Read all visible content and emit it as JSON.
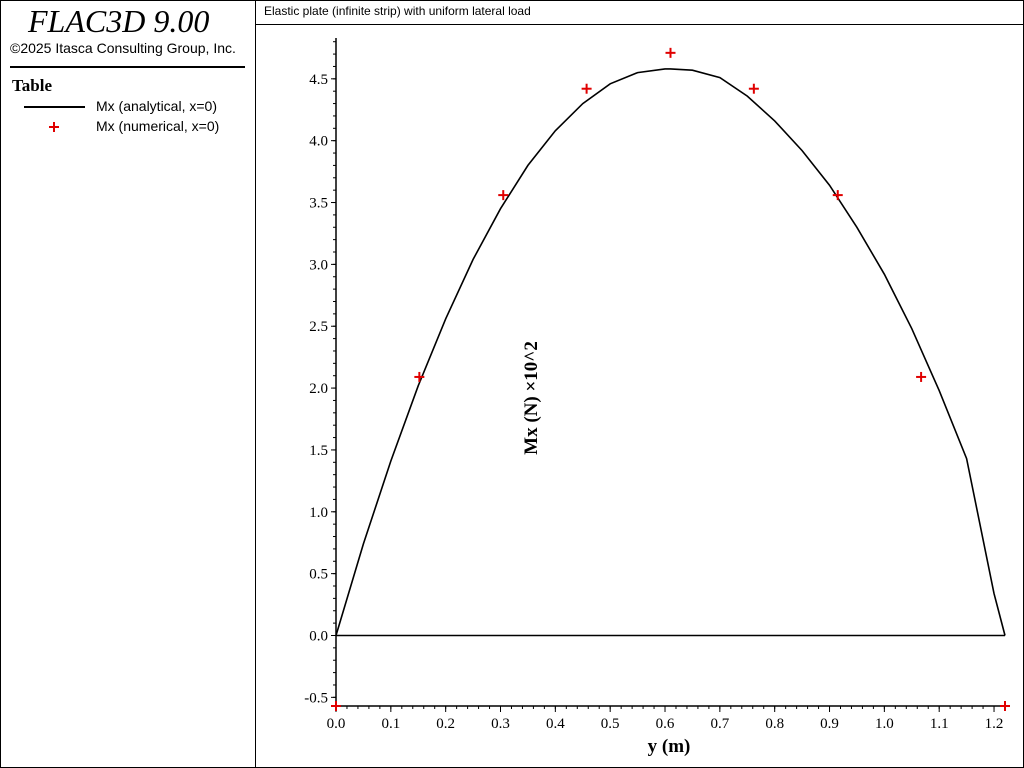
{
  "app": {
    "title": "FLAC3D 9.00",
    "copyright": "©2025 Itasca Consulting Group, Inc."
  },
  "legend": {
    "title": "Table",
    "items": [
      {
        "label": "Mx (analytical, x=0)",
        "marker": "line",
        "color": "#000000"
      },
      {
        "label": "Mx (numerical, x=0)",
        "marker": "plus",
        "color": "#e00000"
      }
    ]
  },
  "plot": {
    "title": "Elastic plate (infinite strip) with uniform lateral load"
  },
  "chart_data": {
    "type": "line",
    "xlabel": "y (m)",
    "ylabel": "Mx (N) ×10^2",
    "xlim": [
      0.0,
      1.22
    ],
    "ylim": [
      -0.57,
      4.83
    ],
    "xticks": [
      "0.0",
      "0.1",
      "0.2",
      "0.3",
      "0.4",
      "0.5",
      "0.6",
      "0.7",
      "0.8",
      "0.9",
      "1.0",
      "1.1",
      "1.2"
    ],
    "yticks": [
      "-0.5",
      "0.0",
      "0.5",
      "1.0",
      "1.5",
      "2.0",
      "2.5",
      "3.0",
      "3.5",
      "4.0",
      "4.5"
    ],
    "baseline": 0.0,
    "grid": false,
    "series": [
      {
        "name": "Mx (analytical, x=0)",
        "style": "line",
        "color": "#000000",
        "x": [
          0.0,
          0.05,
          0.1,
          0.15,
          0.2,
          0.25,
          0.3,
          0.35,
          0.4,
          0.45,
          0.5,
          0.55,
          0.6,
          0.61,
          0.65,
          0.7,
          0.75,
          0.8,
          0.85,
          0.9,
          0.95,
          1.0,
          1.05,
          1.1,
          1.15,
          1.2,
          1.22
        ],
        "y": [
          0.0,
          0.74,
          1.41,
          2.02,
          2.56,
          3.04,
          3.45,
          3.8,
          4.08,
          4.3,
          4.46,
          4.55,
          4.58,
          4.58,
          4.57,
          4.51,
          4.36,
          4.16,
          3.92,
          3.64,
          3.3,
          2.92,
          2.48,
          1.98,
          1.43,
          0.34,
          0.0
        ]
      },
      {
        "name": "Mx (numerical, x=0)",
        "style": "plus",
        "color": "#e00000",
        "x": [
          0.0,
          0.152,
          0.305,
          0.457,
          0.61,
          0.762,
          0.915,
          1.067,
          1.22
        ],
        "y": [
          -0.57,
          2.09,
          3.56,
          4.42,
          4.71,
          4.42,
          3.56,
          2.09,
          -0.57
        ]
      }
    ]
  }
}
